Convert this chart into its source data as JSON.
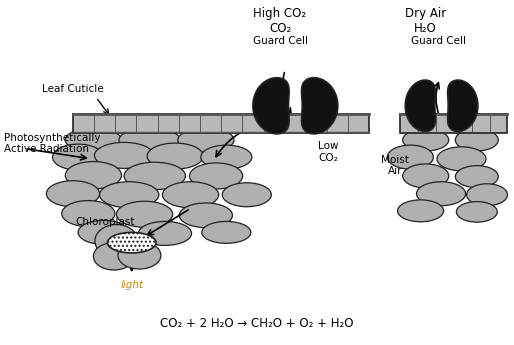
{
  "bg_color": "#ffffff",
  "fig_width": 5.14,
  "fig_height": 3.45,
  "dpi": 100,
  "gray_cell": "#b0b0b0",
  "dark_cell": "#111111",
  "light_gray": "#c8c8c8",
  "cuticle_gray": "#b8b8b8",
  "outline": "#222222",
  "labels": {
    "high_co2": "High CO₂",
    "dry_air": "Dry Air",
    "co2_top": "CO₂",
    "h2o_top": "H₂O",
    "guard_cell_left": "Guard Cell",
    "guard_cell_right": "Guard Cell",
    "leaf_cuticle": "Leaf Cuticle",
    "photosyn_1": "Photosynthetically",
    "photosyn_2": "Active Radiation",
    "chloroplast": "Chloroplast",
    "low_co2": "Low\nCO₂",
    "moist_air": "Moist\nAir",
    "light": "light",
    "equation": "CO₂ + 2 H₂O → CH₂O + O₂ + H₂O"
  }
}
